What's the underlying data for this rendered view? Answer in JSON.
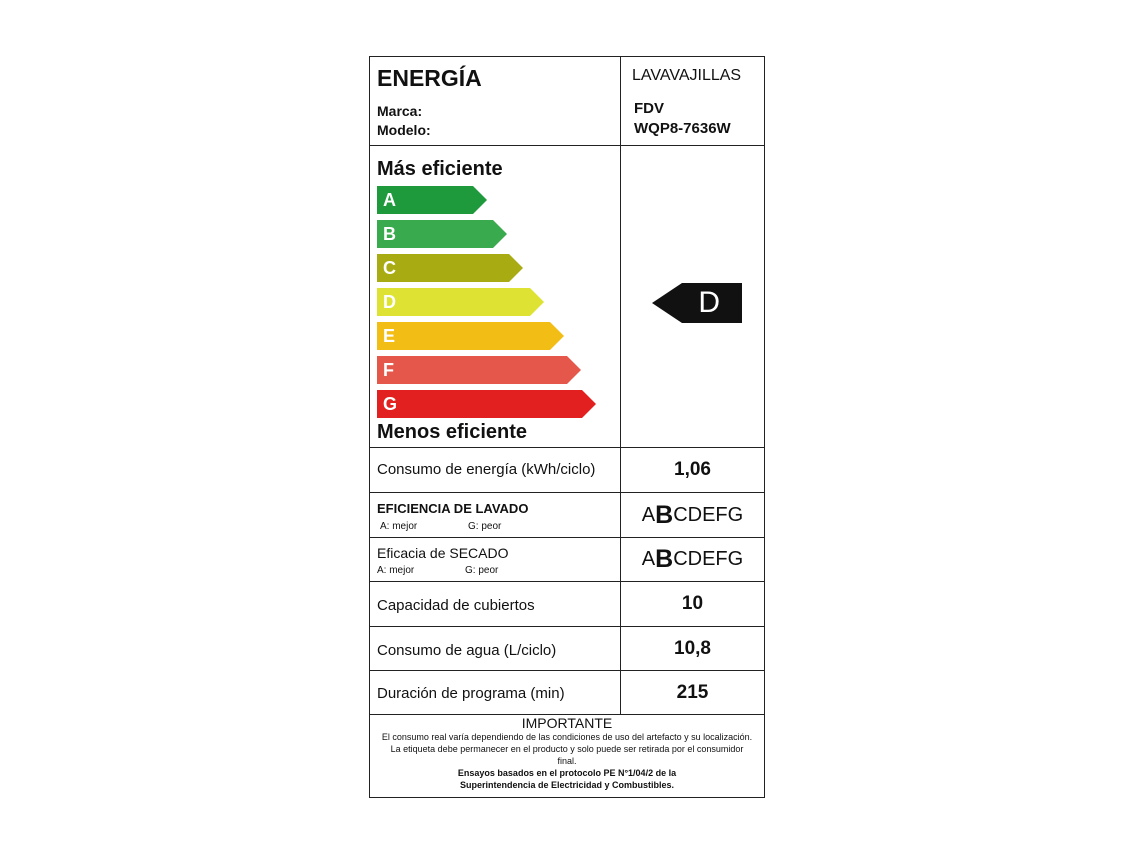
{
  "header": {
    "title": "ENERGÍA",
    "appliance": "LAVAVAJILLAS",
    "brand_label": "Marca:",
    "brand": "FDV",
    "model_label": "Modelo:",
    "model": "WQP8-7636W"
  },
  "scale": {
    "top_label": "Más eficiente",
    "bottom_label": "Menos eficiente",
    "classes": [
      {
        "letter": "A",
        "color": "#1e9a3c"
      },
      {
        "letter": "B",
        "color": "#3aaa4e"
      },
      {
        "letter": "C",
        "color": "#a8ac12"
      },
      {
        "letter": "D",
        "color": "#dde233"
      },
      {
        "letter": "E",
        "color": "#f2be16"
      },
      {
        "letter": "F",
        "color": "#e5574a"
      },
      {
        "letter": "G",
        "color": "#e2201f"
      }
    ],
    "rating": "D"
  },
  "rows": {
    "consumo": {
      "label": "Consumo de energía (kWh/ciclo)",
      "value": "1,06"
    },
    "lavado": {
      "label": "EFICIENCIA DE LAVADO",
      "best": "A: mejor",
      "worst": "G: peor",
      "pre": "A",
      "selected": "B",
      "post": "CDEFG"
    },
    "secado": {
      "label": "Eficacia de SECADO",
      "best": "A: mejor",
      "worst": "G: peor",
      "pre": "A",
      "selected": "B",
      "post": "CDEFG"
    },
    "cubiertos": {
      "label": "Capacidad de cubiertos",
      "value": "10"
    },
    "agua": {
      "label": "Consumo de agua (L/ciclo)",
      "value": "10,8"
    },
    "duracion": {
      "label": "Duración de programa (min)",
      "value": "215"
    }
  },
  "important": {
    "title": "IMPORTANTE",
    "text": "El consumo  real varía dependiendo de las condiciones de uso del artefacto y su localización. La etiqueta debe permanecer en el producto y solo puede ser retirada por el consumidor final.",
    "bold": "Ensayos basados en el protocolo PE N°1/04/2 de la Superintendencia de Electricidad y Combustibles."
  }
}
